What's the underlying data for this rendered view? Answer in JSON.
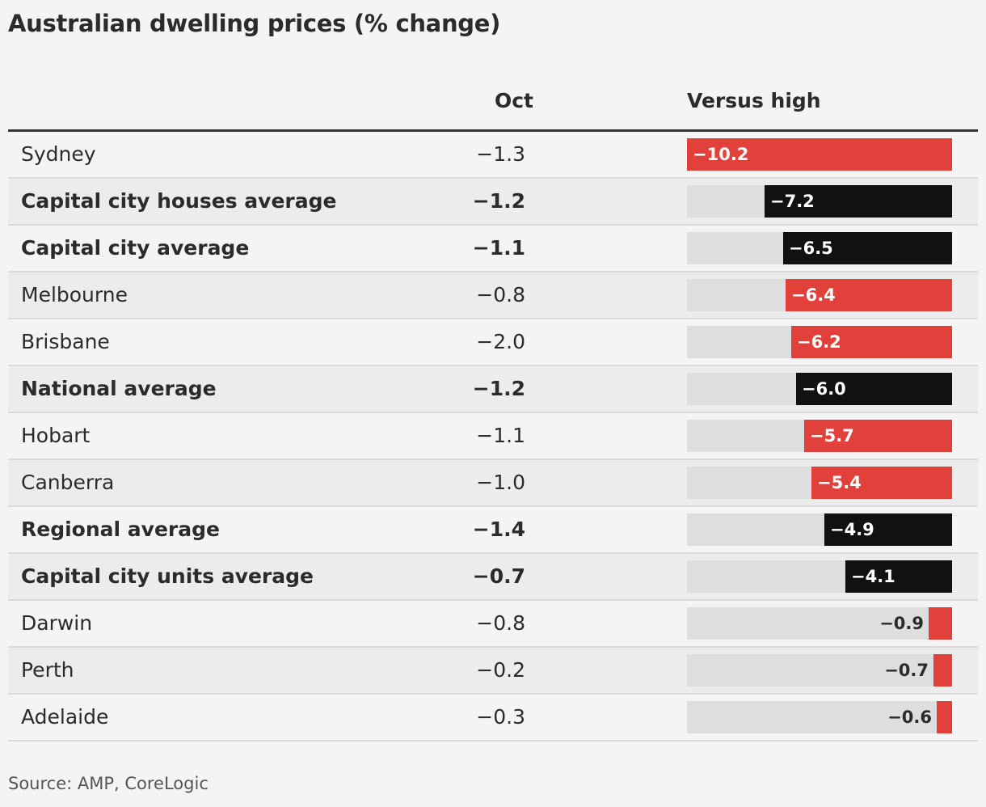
{
  "title": "Australian dwelling prices (% change)",
  "source": "Source: AMP, CoreLogic",
  "columns": {
    "oct": "Oct",
    "versus_high": "Versus high"
  },
  "colors": {
    "city": "#e2403a",
    "average": "#111111",
    "track": "#dedede"
  },
  "chart_data": {
    "type": "table",
    "title": "Australian dwelling prices (% change)",
    "columns": [
      "Oct",
      "Versus high"
    ],
    "xlim": [
      -10.2,
      0
    ],
    "rows": [
      {
        "name": "Sydney",
        "oct": "−1.3",
        "versus_high": -10.2,
        "label": "−10.2",
        "average": false
      },
      {
        "name": "Capital city houses average",
        "oct": "−1.2",
        "versus_high": -7.2,
        "label": "−7.2",
        "average": true
      },
      {
        "name": "Capital city average",
        "oct": "−1.1",
        "versus_high": -6.5,
        "label": "−6.5",
        "average": true
      },
      {
        "name": "Melbourne",
        "oct": "−0.8",
        "versus_high": -6.4,
        "label": "−6.4",
        "average": false
      },
      {
        "name": "Brisbane",
        "oct": "−2.0",
        "versus_high": -6.2,
        "label": "−6.2",
        "average": false
      },
      {
        "name": "National average",
        "oct": "−1.2",
        "versus_high": -6.0,
        "label": "−6.0",
        "average": true
      },
      {
        "name": "Hobart",
        "oct": "−1.1",
        "versus_high": -5.7,
        "label": "−5.7",
        "average": false
      },
      {
        "name": "Canberra",
        "oct": "−1.0",
        "versus_high": -5.4,
        "label": "−5.4",
        "average": false
      },
      {
        "name": "Regional average",
        "oct": "−1.4",
        "versus_high": -4.9,
        "label": "−4.9",
        "average": true
      },
      {
        "name": "Capital city units average",
        "oct": "−0.7",
        "versus_high": -4.1,
        "label": "−4.1",
        "average": true
      },
      {
        "name": "Darwin",
        "oct": "−0.8",
        "versus_high": -0.9,
        "label": "−0.9",
        "average": false
      },
      {
        "name": "Perth",
        "oct": "−0.2",
        "versus_high": -0.7,
        "label": "−0.7",
        "average": false
      },
      {
        "name": "Adelaide",
        "oct": "−0.3",
        "versus_high": -0.6,
        "label": "−0.6",
        "average": false
      }
    ]
  }
}
